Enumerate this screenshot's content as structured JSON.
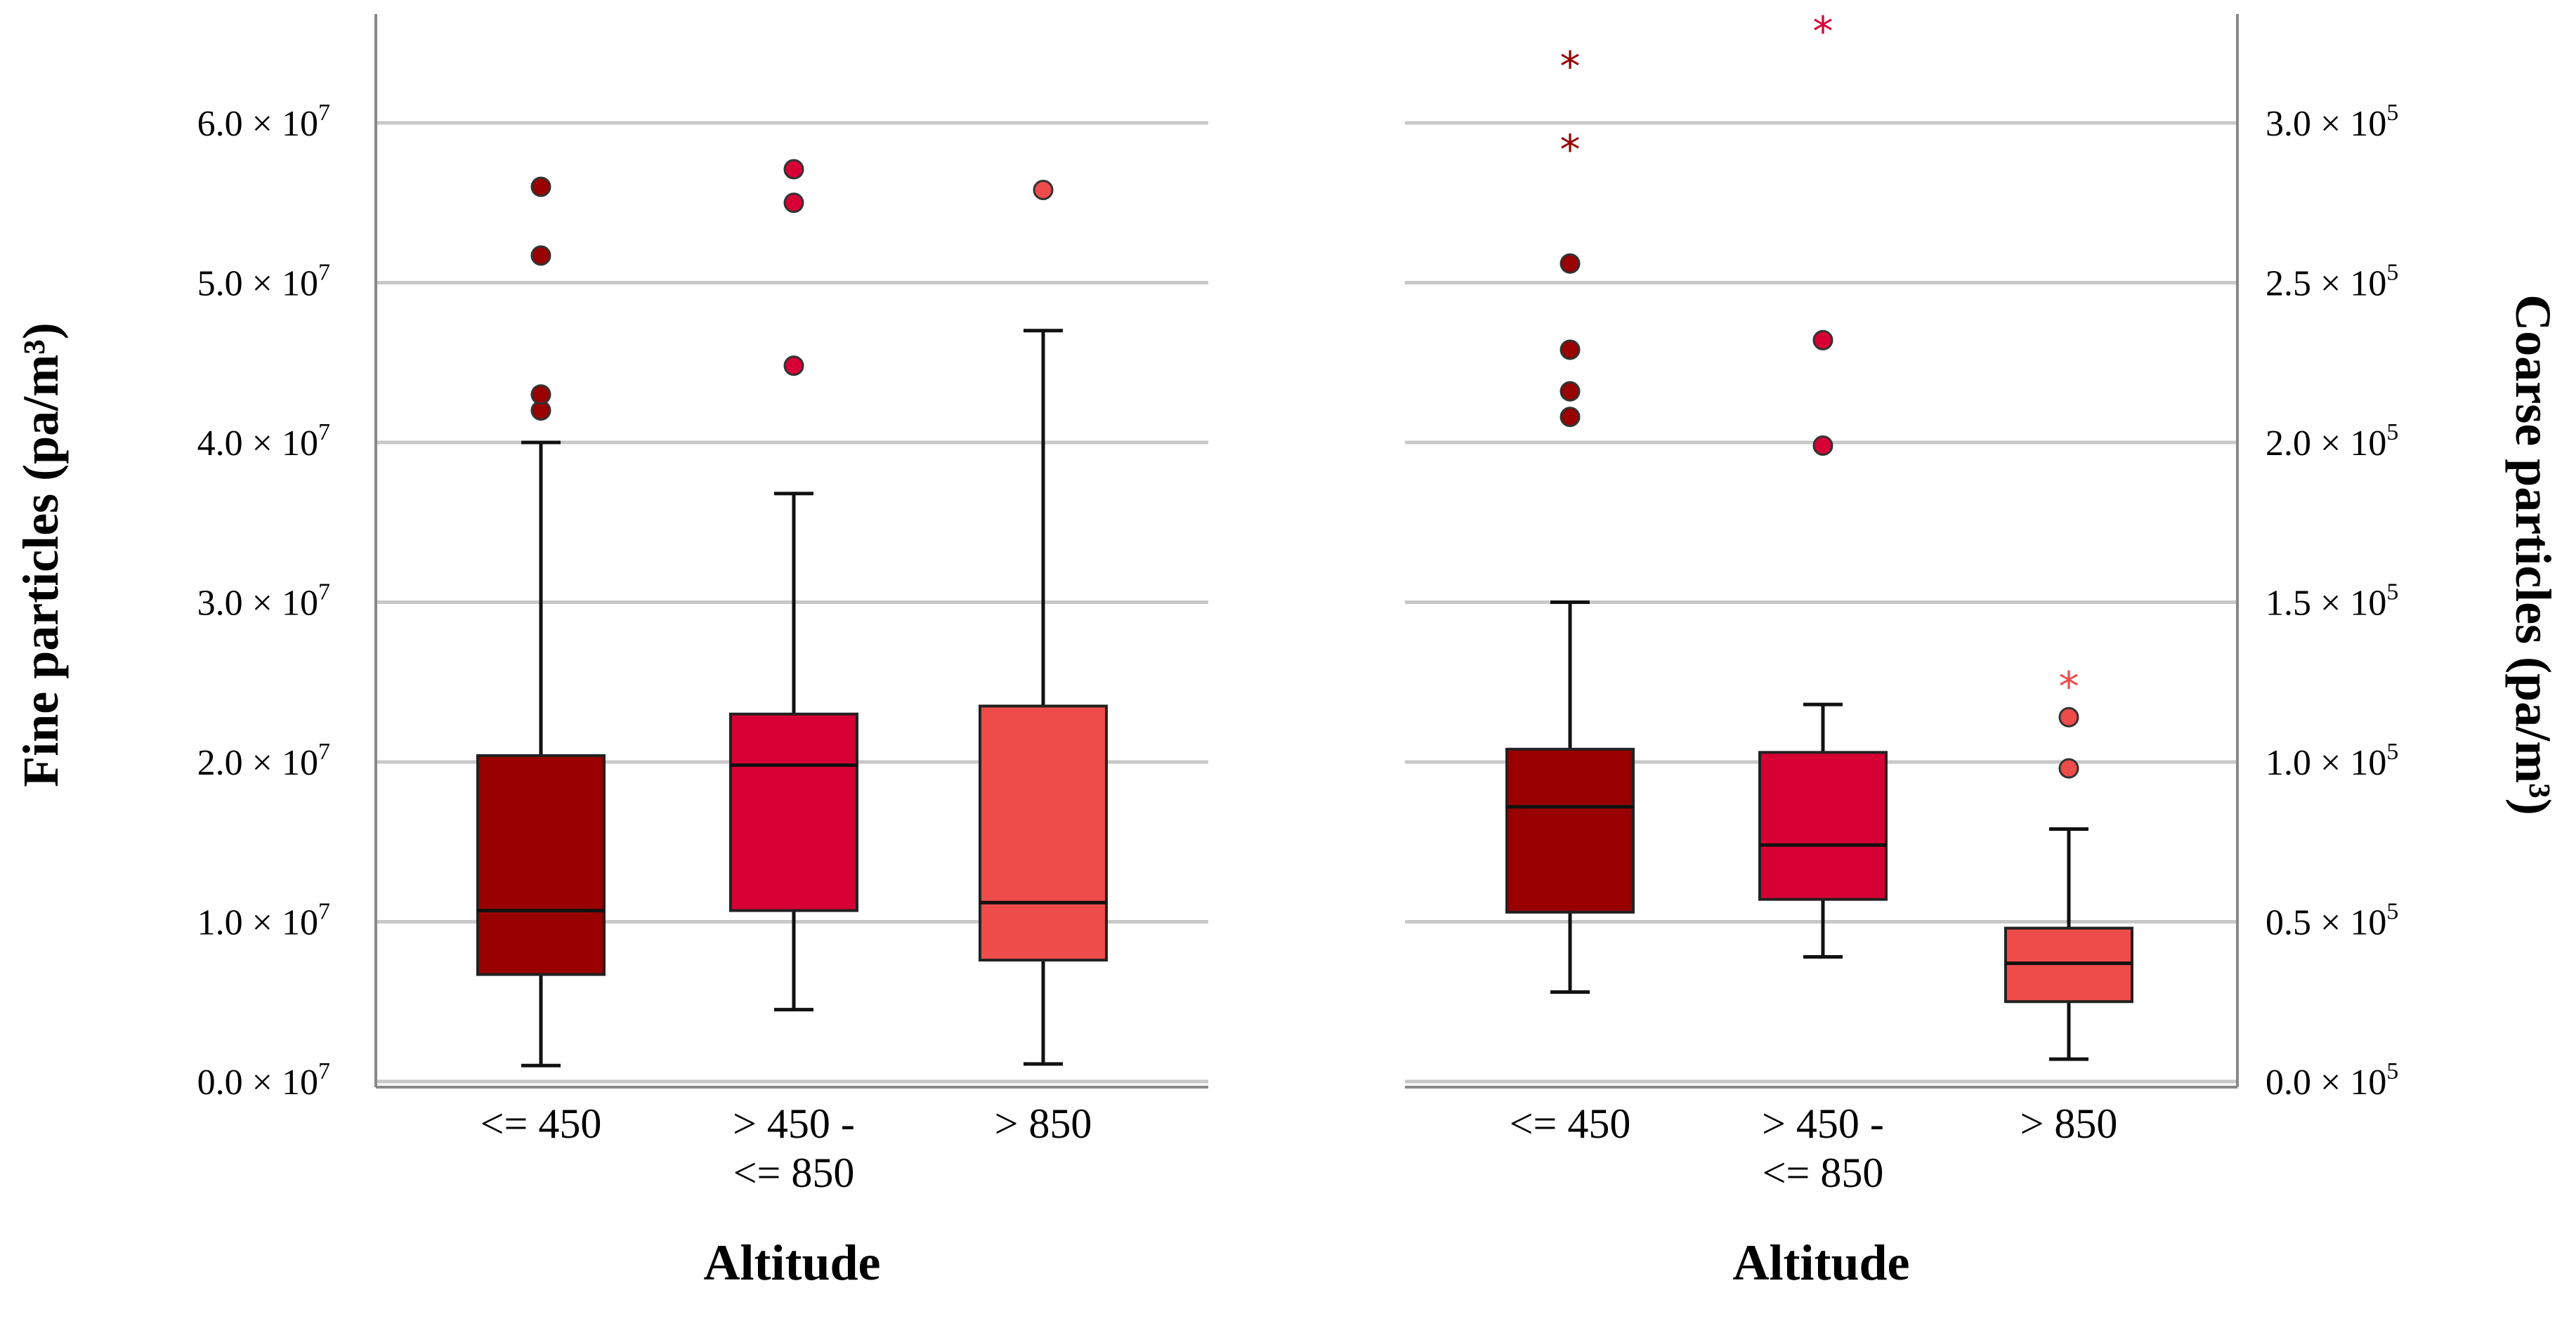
{
  "chart_data": [
    {
      "type": "boxplot",
      "xlabel": "Altitude",
      "ylabel": "Fine particles (pa/m³)",
      "categories": [
        "<= 450",
        "> 450 - <= 850",
        "> 850"
      ],
      "category_lines": [
        [
          "<= 450"
        ],
        [
          "> 450 -",
          "<= 850"
        ],
        [
          "> 850"
        ]
      ],
      "colors": [
        "#990000",
        "#d70035",
        "#ee4b4b"
      ],
      "ylim": [
        0,
        65000000
      ],
      "ticks": [
        {
          "value": 0,
          "mantissa": "0.0",
          "exp": "7"
        },
        {
          "value": 10000000,
          "mantissa": "1.0",
          "exp": "7"
        },
        {
          "value": 20000000,
          "mantissa": "2.0",
          "exp": "7"
        },
        {
          "value": 30000000,
          "mantissa": "3.0",
          "exp": "7"
        },
        {
          "value": 40000000,
          "mantissa": "4.0",
          "exp": "7"
        },
        {
          "value": 50000000,
          "mantissa": "5.0",
          "exp": "7"
        },
        {
          "value": 60000000,
          "mantissa": "6.0",
          "exp": "7"
        }
      ],
      "grid": true,
      "boxes": [
        {
          "category": "<= 450",
          "whisker_low": 1000000,
          "q1": 6700000,
          "median": 10700000,
          "q3": 20400000,
          "whisker_high": 40000000,
          "outliers": [
            42000000,
            43000000,
            51700000,
            56000000
          ],
          "extremes": []
        },
        {
          "category": "> 450 - <= 850",
          "whisker_low": 4500000,
          "q1": 10700000,
          "median": 19800000,
          "q3": 23000000,
          "whisker_high": 36800000,
          "outliers": [
            44800000,
            55000000,
            57100000
          ],
          "extremes": []
        },
        {
          "category": "> 850",
          "whisker_low": 1100000,
          "q1": 7600000,
          "median": 11200000,
          "q3": 23500000,
          "whisker_high": 47000000,
          "outliers": [
            55800000
          ],
          "extremes": []
        }
      ]
    },
    {
      "type": "boxplot",
      "xlabel": "Altitude",
      "ylabel": "Coarse particles (pa/m³)",
      "categories": [
        "<= 450",
        "> 450 - <= 850",
        "> 850"
      ],
      "category_lines": [
        [
          "<= 450"
        ],
        [
          "> 450 -",
          "<= 850"
        ],
        [
          "> 850"
        ]
      ],
      "colors": [
        "#990000",
        "#d70035",
        "#ee4b4b"
      ],
      "ylim": [
        0,
        325000
      ],
      "ticks": [
        {
          "value": 0,
          "mantissa": "0.0",
          "exp": "5"
        },
        {
          "value": 50000,
          "mantissa": "0.5",
          "exp": "5"
        },
        {
          "value": 100000,
          "mantissa": "1.0",
          "exp": "5"
        },
        {
          "value": 150000,
          "mantissa": "1.5",
          "exp": "5"
        },
        {
          "value": 200000,
          "mantissa": "2.0",
          "exp": "5"
        },
        {
          "value": 250000,
          "mantissa": "2.5",
          "exp": "5"
        },
        {
          "value": 300000,
          "mantissa": "3.0",
          "exp": "5"
        }
      ],
      "grid": true,
      "boxes": [
        {
          "category": "<= 450",
          "whisker_low": 28000,
          "q1": 53000,
          "median": 86000,
          "q3": 104000,
          "whisker_high": 150000,
          "outliers": [
            208000,
            216000,
            229000,
            256000
          ],
          "extremes": [
            293000,
            319000
          ]
        },
        {
          "category": "> 450 - <= 850",
          "whisker_low": 39000,
          "q1": 57000,
          "median": 74000,
          "q3": 103000,
          "whisker_high": 118000,
          "outliers": [
            199000,
            232000
          ],
          "extremes": [
            330000
          ]
        },
        {
          "category": "> 850",
          "whisker_low": 7000,
          "q1": 25000,
          "median": 37000,
          "q3": 48000,
          "whisker_high": 79000,
          "outliers": [
            98000,
            114000
          ],
          "extremes": [
            125000
          ]
        }
      ]
    }
  ]
}
